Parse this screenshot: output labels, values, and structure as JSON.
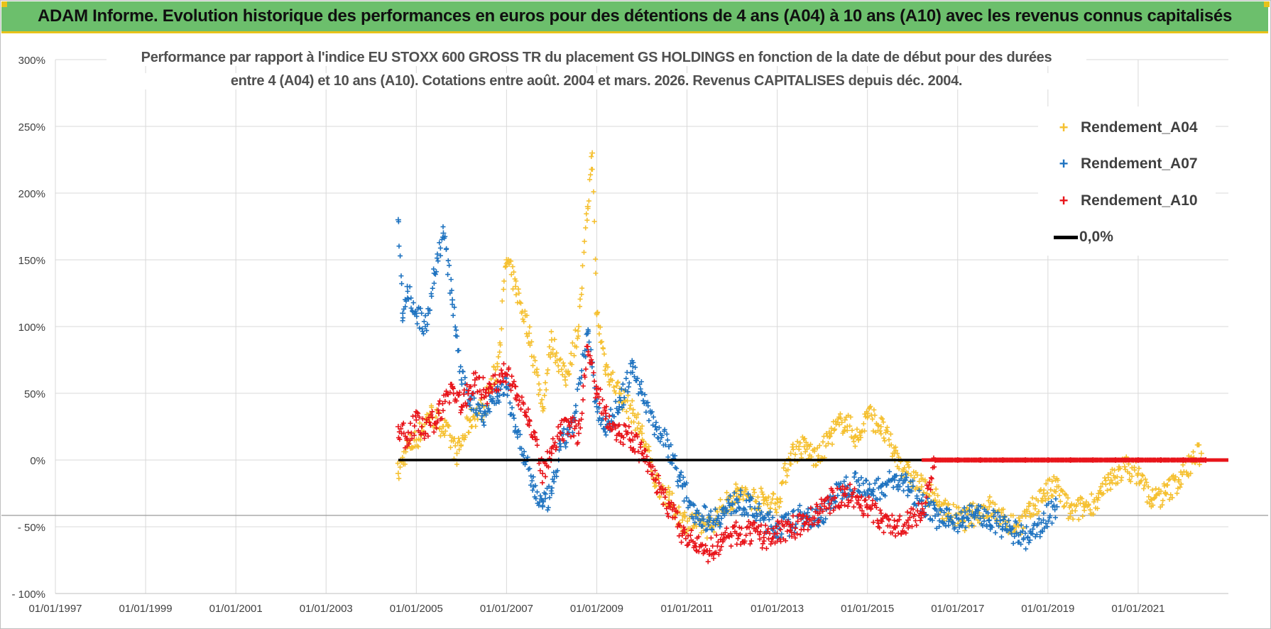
{
  "header": {
    "banner_title": "ADAM Informe. Evolution historique des performances en euros pour des détentions de 4 ans (A04) à 10 ans (A10) avec les revenus connus capitalisés"
  },
  "colors": {
    "banner_bg": "#6cbf6c",
    "banner_accent": "#e8c21a",
    "a04": "#f5c030",
    "a07": "#1f73c0",
    "a10": "#e8141a",
    "zero": "#000000",
    "grid": "#d9d9d9"
  },
  "chart_data": {
    "type": "scatter",
    "title_line1": "Performance par rapport à l'indice EU STOXX 600 GROSS TR  du placement GS HOLDINGS en fonction de la date de début pour des durées",
    "title_line2": "entre 4 (A04) et 10 ans (A10). Cotations entre août. 2004 et mars. 2026. Revenus CAPITALISES depuis déc. 2004.",
    "x_axis": {
      "min": 1997.0,
      "max": 2023.0,
      "tick_values": [
        1997,
        1999,
        2001,
        2003,
        2005,
        2007,
        2009,
        2011,
        2013,
        2015,
        2017,
        2019,
        2021
      ],
      "tick_labels": [
        "01/01/1997",
        "01/01/1999",
        "01/01/2001",
        "01/01/2003",
        "01/01/2005",
        "01/01/2007",
        "01/01/2009",
        "01/01/2011",
        "01/01/2013",
        "01/01/2015",
        "01/01/2017",
        "01/01/2019",
        "01/01/2021"
      ]
    },
    "y_axis": {
      "min": -100,
      "max": 300,
      "tick_values": [
        -100,
        -50,
        0,
        50,
        100,
        150,
        200,
        250,
        300
      ],
      "tick_labels": [
        "- 100%",
        "- 50%",
        "0%",
        "50%",
        "100%",
        "150%",
        "200%",
        "250%",
        "300%"
      ]
    },
    "grid": true,
    "legend_position": "top-right",
    "series": [
      {
        "name": "Rendement_A04",
        "marker": "+",
        "x": [
          2004.6,
          2004.8,
          2005.0,
          2005.3,
          2005.6,
          2005.9,
          2006.2,
          2006.5,
          2006.8,
          2007.0,
          2007.2,
          2007.5,
          2007.8,
          2008.0,
          2008.3,
          2008.6,
          2008.8,
          2008.9,
          2009.0,
          2009.2,
          2009.5,
          2009.8,
          2010.0,
          2010.3,
          2010.6,
          2010.9,
          2011.2,
          2011.5,
          2011.8,
          2012.1,
          2012.4,
          2012.7,
          2013.0,
          2013.3,
          2013.6,
          2013.9,
          2014.2,
          2014.5,
          2014.8,
          2015.0,
          2015.3,
          2015.6,
          2015.9,
          2016.2,
          2016.5,
          2016.8,
          2017.1,
          2017.4,
          2017.7,
          2018.0,
          2018.3,
          2018.6,
          2018.9,
          2019.2,
          2019.5,
          2019.8,
          2020.1,
          2020.4,
          2020.7,
          2021.0,
          2021.3,
          2021.6,
          2021.9,
          2022.2,
          2022.4
        ],
        "values": [
          -10,
          10,
          15,
          35,
          25,
          5,
          30,
          40,
          70,
          150,
          130,
          95,
          40,
          90,
          60,
          100,
          190,
          230,
          110,
          70,
          50,
          35,
          20,
          -15,
          -30,
          -45,
          -48,
          -50,
          -35,
          -25,
          -28,
          -30,
          -32,
          5,
          10,
          0,
          20,
          30,
          15,
          35,
          25,
          5,
          -10,
          -20,
          -30,
          -40,
          -45,
          -40,
          -35,
          -45,
          -50,
          -40,
          -25,
          -20,
          -40,
          -35,
          -30,
          -15,
          -5,
          -10,
          -30,
          -25,
          -15,
          0,
          5
        ]
      },
      {
        "name": "Rendement_A07",
        "marker": "+",
        "x": [
          2004.6,
          2004.7,
          2004.8,
          2005.0,
          2005.2,
          2005.4,
          2005.6,
          2005.8,
          2006.0,
          2006.2,
          2006.5,
          2006.8,
          2007.0,
          2007.2,
          2007.4,
          2007.6,
          2007.8,
          2008.0,
          2008.2,
          2008.5,
          2008.8,
          2009.0,
          2009.2,
          2009.5,
          2009.8,
          2010.0,
          2010.3,
          2010.6,
          2010.9,
          2011.2,
          2011.5,
          2011.8,
          2012.1,
          2012.4,
          2012.7,
          2013.0,
          2013.3,
          2013.6,
          2013.9,
          2014.2,
          2014.5,
          2014.8,
          2015.0,
          2015.3,
          2015.6,
          2015.9,
          2016.2,
          2016.5,
          2016.8,
          2017.1,
          2017.4,
          2017.7,
          2018.0,
          2018.3,
          2018.6,
          2018.9,
          2019.2
        ],
        "values": [
          180,
          110,
          130,
          110,
          100,
          140,
          170,
          120,
          60,
          45,
          35,
          50,
          55,
          25,
          0,
          -20,
          -35,
          -25,
          10,
          30,
          95,
          40,
          25,
          40,
          70,
          50,
          25,
          10,
          -20,
          -40,
          -45,
          -40,
          -30,
          -35,
          -45,
          -50,
          -48,
          -40,
          -45,
          -30,
          -20,
          -15,
          -25,
          -20,
          -15,
          -20,
          -30,
          -42,
          -46,
          -44,
          -40,
          -45,
          -50,
          -55,
          -60,
          -45,
          -35
        ]
      },
      {
        "name": "Rendement_A10",
        "marker": "+",
        "x": [
          2004.6,
          2004.8,
          2005.0,
          2005.2,
          2005.5,
          2005.8,
          2006.0,
          2006.3,
          2006.6,
          2006.9,
          2007.2,
          2007.5,
          2007.8,
          2008.0,
          2008.2,
          2008.4,
          2008.6,
          2008.8,
          2009.0,
          2009.2,
          2009.5,
          2009.8,
          2010.0,
          2010.3,
          2010.6,
          2010.9,
          2011.2,
          2011.5,
          2011.8,
          2012.1,
          2012.4,
          2012.7,
          2013.0,
          2013.3,
          2013.6,
          2013.9,
          2014.2,
          2014.5,
          2014.8,
          2015.0,
          2015.3,
          2015.6,
          2015.9,
          2016.2,
          2016.5,
          2017.0,
          2017.5,
          2018.0,
          2018.5,
          2019.0,
          2019.5,
          2020.0,
          2020.5,
          2021.0,
          2021.5,
          2022.0,
          2022.5
        ],
        "values": [
          25,
          15,
          30,
          20,
          35,
          55,
          40,
          60,
          50,
          65,
          55,
          30,
          -10,
          5,
          20,
          25,
          20,
          85,
          50,
          35,
          20,
          15,
          5,
          -15,
          -35,
          -55,
          -65,
          -68,
          -60,
          -55,
          -55,
          -58,
          -55,
          -50,
          -48,
          -40,
          -30,
          -25,
          -30,
          -35,
          -45,
          -50,
          -45,
          -40,
          0,
          0,
          0,
          0,
          0,
          0,
          0,
          0,
          0,
          0,
          0,
          0,
          0
        ]
      },
      {
        "name": "0,0%",
        "marker": "line",
        "x": [
          2004.6,
          2023.0
        ],
        "values": [
          0,
          0
        ]
      }
    ]
  }
}
